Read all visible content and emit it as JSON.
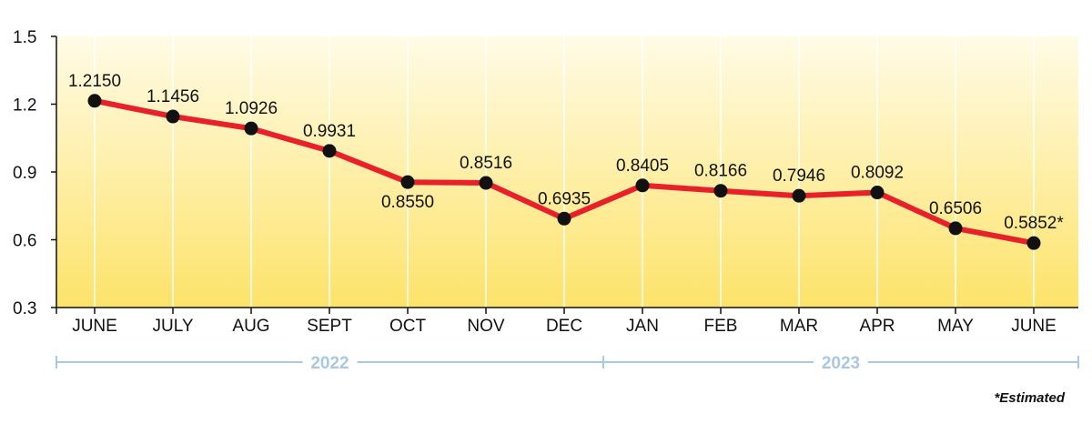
{
  "chart_data": {
    "type": "line",
    "categories": [
      "JUNE",
      "JULY",
      "AUG",
      "SEPT",
      "OCT",
      "NOV",
      "DEC",
      "JAN",
      "FEB",
      "MAR",
      "APR",
      "MAY",
      "JUNE"
    ],
    "series": [
      {
        "values": [
          1.215,
          1.1456,
          1.0926,
          0.9931,
          0.855,
          0.8516,
          0.6935,
          0.8405,
          0.8166,
          0.7946,
          0.8092,
          0.6506,
          0.5852
        ]
      }
    ],
    "data_labels": [
      "1.2150",
      "1.1456",
      "1.0926",
      "0.9931",
      "0.8550",
      "0.8516",
      "0.6935",
      "0.8405",
      "0.8166",
      "0.7946",
      "0.8092",
      "0.6506",
      "0.5852*"
    ],
    "ylim": [
      0.3,
      1.5
    ],
    "yticks": [
      0.3,
      0.6,
      0.9,
      1.2,
      1.5
    ],
    "ytick_labels": [
      "0.3",
      "0.6",
      "0.9",
      "1.2",
      "1.5"
    ],
    "grid": {
      "vertical": true,
      "horizontal": false
    },
    "year_groups": [
      {
        "label": "2022",
        "from_index": 0,
        "to_index": 6
      },
      {
        "label": "2023",
        "from_index": 7,
        "to_index": 12
      }
    ],
    "footnote": "*Estimated",
    "colors": {
      "line": "#e8202a",
      "marker": "#111111",
      "background_top": "#fffbe6",
      "background_bottom": "#fde36a",
      "year_bracket": "#a9c8e2",
      "grid": "#ffffff"
    }
  }
}
